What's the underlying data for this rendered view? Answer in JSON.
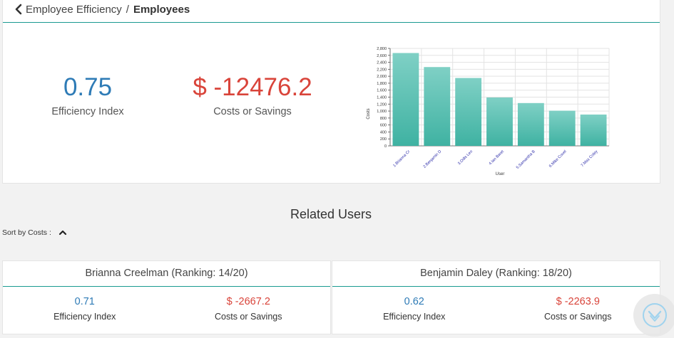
{
  "breadcrumb": {
    "parent": "Employee Efficiency",
    "separator": "/",
    "current": "Employees"
  },
  "kpis": {
    "efficiency_value": "0.75",
    "efficiency_label": "Efficiency Index",
    "cost_value": "$ -12476.2",
    "cost_label": "Costs or Savings"
  },
  "chart_data": {
    "type": "bar",
    "categories": [
      "1.Brianna Cr",
      "2.Benjamin D",
      "3.Odis Leo",
      "4.Ian Baret",
      "5.Samantha B",
      "6.Mike Covel",
      "7.Max Coley"
    ],
    "values": [
      2667,
      2264,
      1950,
      1390,
      1230,
      1010,
      900
    ],
    "xlabel": "User",
    "ylabel": "Costs",
    "ylim": [
      0,
      2800
    ],
    "yticks": [
      0,
      200,
      400,
      600,
      800,
      1000,
      1200,
      1400,
      1600,
      1800,
      2000,
      2200,
      2400,
      2600,
      2800
    ],
    "ytick_labels": [
      "0",
      "200",
      "400",
      "600",
      "800",
      "1,000",
      "1,200",
      "1,400",
      "1,600",
      "1,800",
      "2,000",
      "2,200",
      "2,400",
      "2,600",
      "2,800"
    ],
    "grid": true,
    "bar_color_top": "#7fd0c5",
    "bar_color_bottom": "#3fb2a2"
  },
  "related": {
    "title": "Related Users",
    "sort_label": "Sort by Costs :",
    "users": [
      {
        "name": "Brianna Creelman (Ranking: 14/20)",
        "efficiency": "0.71",
        "efficiency_label": "Efficiency Index",
        "cost": "$ -2667.2",
        "cost_label": "Costs or Savings"
      },
      {
        "name": "Benjamin Daley (Ranking: 18/20)",
        "efficiency": "0.62",
        "efficiency_label": "Efficiency Index",
        "cost": "$ -2263.9",
        "cost_label": "Costs or Savings"
      }
    ]
  },
  "icons": {
    "back": "chevron-left-icon",
    "sort": "caret-up-icon",
    "scroll": "chevron-down-circle-icon"
  },
  "colors": {
    "accent": "#1a9a91",
    "efficiency": "#2e7bb6",
    "cost": "#d9443a"
  }
}
